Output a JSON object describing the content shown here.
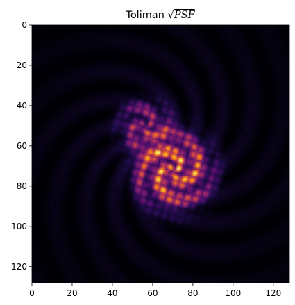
{
  "chart_data": {
    "type": "heatmap",
    "title": "Toliman √PSF",
    "title_prefix": "Toliman ",
    "title_math": "PSF",
    "colormap": "inferno",
    "xlim": [
      0,
      128
    ],
    "ylim": [
      128,
      0
    ],
    "xticks": [
      0,
      20,
      40,
      60,
      80,
      100,
      120
    ],
    "yticks": [
      0,
      20,
      40,
      60,
      80,
      100,
      120
    ],
    "xlabel": "",
    "ylabel": "",
    "grid": false,
    "image": {
      "shape": [
        128,
        128
      ],
      "description": "sqrt of point spread function: dark background with faint radial speckle; two overlapping bright lobed clusters",
      "features": [
        {
          "name": "upper-left cluster",
          "center": [
            56,
            50
          ],
          "radius": 14,
          "peak": 0.55
        },
        {
          "name": "main cluster",
          "center": [
            70,
            72
          ],
          "radius": 20,
          "peak": 1.0
        }
      ],
      "value_range": [
        0,
        1
      ]
    }
  }
}
